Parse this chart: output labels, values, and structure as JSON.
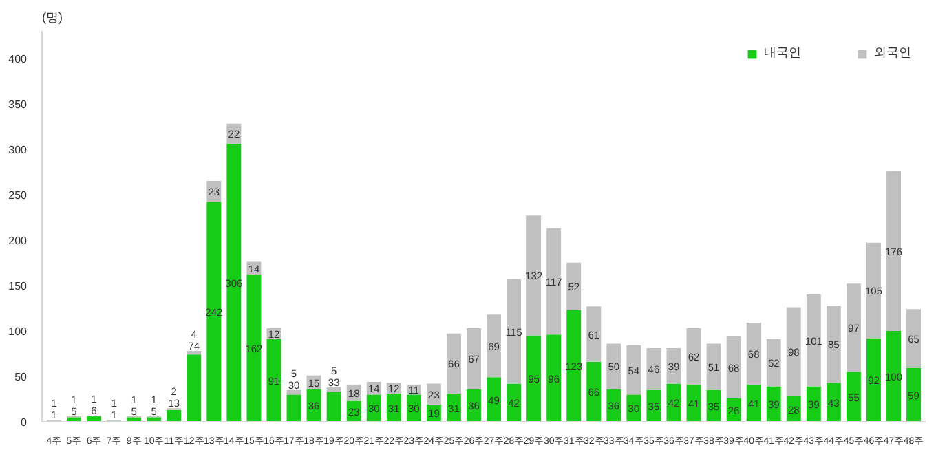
{
  "chart_data": {
    "type": "bar",
    "stacked": true,
    "ylabel": "(명)",
    "categories": [
      "4주",
      "5주",
      "6주",
      "7주",
      "9주",
      "10주",
      "11주",
      "12주",
      "13주",
      "14주",
      "15주",
      "16주",
      "17주",
      "18주",
      "19주",
      "20주",
      "21주",
      "22주",
      "23주",
      "24주",
      "25주",
      "26주",
      "27주",
      "28주",
      "29주",
      "30주",
      "31주",
      "32주",
      "33주",
      "34주",
      "35주",
      "36주",
      "37주",
      "38주",
      "39주",
      "40주",
      "41주",
      "42주",
      "43주",
      "44주",
      "45주",
      "46주",
      "47주",
      "48주"
    ],
    "series": [
      {
        "name": "내국인",
        "color": "#16cc16",
        "values": [
          1,
          5,
          6,
          1,
          5,
          5,
          13,
          74,
          242,
          306,
          162,
          91,
          30,
          36,
          33,
          23,
          30,
          31,
          30,
          19,
          31,
          36,
          49,
          42,
          95,
          96,
          123,
          66,
          36,
          30,
          35,
          42,
          41,
          35,
          26,
          41,
          39,
          28,
          39,
          43,
          55,
          92,
          100,
          59
        ]
      },
      {
        "name": "외국인",
        "color": "#c0c0c0",
        "values": [
          1,
          1,
          1,
          1,
          1,
          1,
          2,
          4,
          23,
          22,
          14,
          12,
          5,
          15,
          5,
          18,
          14,
          12,
          11,
          23,
          66,
          67,
          69,
          115,
          132,
          117,
          52,
          61,
          50,
          54,
          46,
          39,
          62,
          51,
          68,
          68,
          52,
          98,
          101,
          85,
          97,
          105,
          176,
          65
        ]
      }
    ],
    "ylim": [
      0,
      430
    ],
    "yticks": [
      0,
      50,
      100,
      150,
      200,
      250,
      300,
      350,
      400
    ],
    "data_labels": true,
    "legend": "top right",
    "grid": false
  }
}
